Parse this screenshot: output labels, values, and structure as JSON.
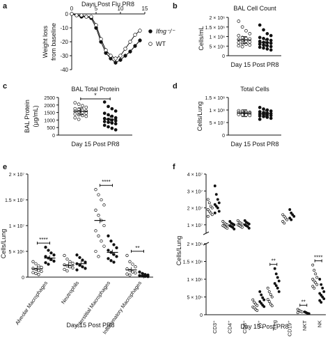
{
  "chart_data": [
    {
      "panel": "a",
      "type": "line",
      "xlabel": "Days Post Flu PR8",
      "ylabel": "Weight loss from baseline",
      "xticks": [
        "0",
        "5",
        "10",
        "15"
      ],
      "yticks": [
        "0",
        "-10",
        "-20",
        "-30",
        "-40"
      ],
      "xlim": [
        0,
        15
      ],
      "ylim": [
        -40,
        0
      ],
      "series": [
        {
          "name": "Ifng⁻/⁻",
          "marker": "filled",
          "x": [
            0,
            1,
            2,
            3,
            4,
            5,
            6,
            7,
            8,
            9,
            10,
            11,
            12,
            13,
            14
          ],
          "values": [
            0,
            -1,
            -2,
            -2,
            -3,
            -10,
            -20,
            -28,
            -32,
            -35,
            -33,
            -30,
            -27,
            -23,
            -19
          ]
        },
        {
          "name": "WT",
          "marker": "open",
          "x": [
            0,
            1,
            2,
            3,
            4,
            5,
            6,
            7,
            8,
            9,
            10,
            11,
            12,
            13,
            14
          ],
          "values": [
            0,
            -1,
            -1,
            -2,
            -2,
            -8,
            -18,
            -26,
            -30,
            -32,
            -30,
            -25,
            -20,
            -15,
            -12
          ]
        }
      ],
      "legend": [
        "Ifng⁻/⁻",
        "WT"
      ],
      "legend_position": "right"
    },
    {
      "panel": "b",
      "type": "scatter",
      "title": "BAL Cell Count",
      "ylabel": "Cells/mL",
      "xlabel": "Day 15 Post PR8",
      "yticks": [
        "0",
        "5 × 10⁵",
        "1 × 10⁶",
        "1.5 × 10⁶",
        "2 × 10⁶"
      ],
      "ylim": [
        0,
        2000000
      ],
      "series": [
        {
          "name": "WT",
          "marker": "open",
          "mean": 820000,
          "values": [
            1800000,
            1500000,
            1300000,
            1150000,
            1050000,
            950000,
            900000,
            880000,
            850000,
            800000,
            760000,
            720000,
            680000,
            640000,
            600000,
            560000,
            520000,
            470000
          ]
        },
        {
          "name": "Ifng⁻/⁻",
          "marker": "filled",
          "mean": 680000,
          "values": [
            1600000,
            1350000,
            1150000,
            1050000,
            950000,
            900000,
            850000,
            800000,
            750000,
            700000,
            680000,
            650000,
            600000,
            560000,
            520000,
            480000,
            440000,
            400000,
            350000,
            300000
          ]
        }
      ]
    },
    {
      "panel": "c",
      "type": "scatter",
      "title": "BAL Total Protein",
      "ylabel": "BAL Protein (µg/mL)",
      "xlabel": "Day 15 Post PR8",
      "yticks": [
        "0",
        "500",
        "1000",
        "1500",
        "2000",
        "2500"
      ],
      "ylim": [
        0,
        2500
      ],
      "significance": "*",
      "series": [
        {
          "name": "WT",
          "marker": "open",
          "mean": 1580,
          "values": [
            2150,
            2050,
            1950,
            1850,
            1750,
            1700,
            1650,
            1600,
            1580,
            1550,
            1500,
            1450,
            1400,
            1350,
            1300,
            1250,
            1150,
            1050
          ]
        },
        {
          "name": "Ifng⁻/⁻",
          "marker": "filled",
          "mean": 1050,
          "values": [
            2200,
            1900,
            1750,
            1600,
            1450,
            1350,
            1250,
            1150,
            1100,
            1050,
            1000,
            950,
            900,
            850,
            800,
            750,
            650,
            550,
            450,
            350
          ]
        }
      ]
    },
    {
      "panel": "d",
      "type": "scatter",
      "title": "Total Cells",
      "ylabel": "Cells/Lung",
      "xlabel": "Day 15 Post PR8",
      "yticks": [
        "0",
        "5 × 10⁷",
        "1 × 10⁸",
        "1.5 × 10⁸"
      ],
      "ylim": [
        0,
        150000000
      ],
      "series": [
        {
          "name": "WT",
          "marker": "open",
          "mean": 87000000,
          "values": [
            97000000,
            95000000,
            93000000,
            91000000,
            90000000,
            89000000,
            88000000,
            87000000,
            86000000,
            85000000,
            84000000,
            83000000,
            82000000,
            81000000,
            80000000,
            78000000
          ]
        },
        {
          "name": "Ifng⁻/⁻",
          "marker": "filled",
          "mean": 86000000,
          "values": [
            110000000,
            104000000,
            100000000,
            96000000,
            93000000,
            90000000,
            88000000,
            86000000,
            84000000,
            82000000,
            80000000,
            78000000,
            76000000,
            74000000,
            71000000,
            67000000,
            63000000
          ]
        }
      ]
    },
    {
      "panel": "e",
      "type": "scatter",
      "ylabel": "Cells/Lung",
      "xlabel": "Day 15 Post PR8",
      "yticks": [
        "0",
        "5 × 10⁶",
        "1 × 10⁷",
        "1.5 × 10⁷",
        "2 × 10⁷"
      ],
      "ylim": [
        0,
        20000000
      ],
      "categories": [
        "Alveolar Macrophages",
        "Neutrophils",
        "Interstitial Macrophages",
        "Inflammatory Macrophages"
      ],
      "significance": [
        "****",
        "",
        "****",
        "**"
      ],
      "series": [
        {
          "name": "WT",
          "marker": "open",
          "means": [
            1600000,
            2300000,
            11000000,
            1400000
          ],
          "values": [
            [
              3000000,
              2600000,
              2200000,
              1900000,
              1700000,
              1500000,
              1300000,
              1100000,
              900000,
              700000,
              500000
            ],
            [
              4200000,
              3500000,
              3000000,
              2700000,
              2400000,
              2200000,
              2000000,
              1800000,
              1500000,
              1200000
            ],
            [
              17000000,
              16000000,
              15000000,
              14000000,
              13000000,
              12000000,
              11000000,
              10000000,
              9000000,
              8000000,
              7000000,
              6000000,
              5000000,
              4000000
            ],
            [
              4200000,
              3000000,
              2500000,
              2000000,
              1600000,
              1300000,
              1000000,
              800000,
              600000,
              400000
            ]
          ]
        },
        {
          "name": "Ifng⁻/⁻",
          "marker": "filled",
          "means": [
            3700000,
            2600000,
            4800000,
            300000
          ],
          "values": [
            [
              5800000,
              5200000,
              4700000,
              4300000,
              4000000,
              3700000,
              3400000,
              3100000,
              2800000,
              2500000
            ],
            [
              4300000,
              3800000,
              3300000,
              2900000,
              2600000,
              2300000,
              2000000,
              1700000,
              1400000
            ],
            [
              8000000,
              7000000,
              6300000,
              5700000,
              5200000,
              4800000,
              4400000,
              4000000,
              3600000,
              3200000,
              2900000
            ],
            [
              1000000,
              700000,
              500000,
              400000,
              300000,
              200000,
              150000,
              100000
            ]
          ]
        }
      ]
    },
    {
      "panel": "f",
      "type": "scatter",
      "ylabel": "Cells/Lung",
      "xlabel": "Day 15 Post PR8",
      "yticks_top": [
        "1 × 10⁷",
        "2 × 10⁷",
        "3 × 10⁷",
        "4 × 10⁷"
      ],
      "ylim_top": [
        5000000,
        40000000
      ],
      "yticks_bottom": [
        "0",
        "5 × 10⁵",
        "1 × 10⁶",
        "1.5 × 10⁶",
        "2 × 10⁶"
      ],
      "ylim_bottom": [
        0,
        2000000
      ],
      "categories": [
        "CD3⁺",
        "CD4⁺",
        "CD8⁺",
        "γδ⁺",
        "Treg",
        "CD19⁺",
        "NKT",
        "NK"
      ],
      "significance": [
        "",
        "",
        "",
        "",
        "**",
        "",
        "**",
        "****"
      ],
      "series": [
        {
          "name": "WT",
          "marker": "open",
          "values": [
            [
              25000000,
              23000000,
              21000000,
              20000000,
              19000000,
              18000000,
              17000000,
              16000000,
              15000000
            ],
            [
              12000000,
              11000000,
              10500000,
              10000000,
              9500000,
              9000000,
              8500000,
              8000000
            ],
            [
              12500000,
              11500000,
              11000000,
              10500000,
              10000000,
              9500000,
              9000000,
              8500000
            ],
            [
              420000,
              350000,
              300000,
              260000,
              220000,
              190000,
              150000,
              120000
            ],
            [
              750000,
              650000,
              570000,
              500000,
              430000,
              370000,
              300000,
              250000
            ],
            [
              16000000,
              15000000,
              14000000,
              13000000,
              12000000,
              11000000
            ],
            [
              150000,
              120000,
              100000,
              80000,
              60000
            ],
            [
              1400000,
              1250000,
              1150000,
              1050000,
              1000000,
              950000,
              900000,
              850000,
              800000,
              750000
            ]
          ]
        },
        {
          "name": "Ifng⁻/⁻",
          "marker": "filled",
          "values": [
            [
              33000000,
              28000000,
              25000000,
              23000000,
              22000000,
              21000000,
              20000000,
              18000000,
              17000000
            ],
            [
              12000000,
              11000000,
              10500000,
              10000000,
              9500000,
              9000000,
              8500000,
              7500000
            ],
            [
              12500000,
              11500000,
              11000000,
              10500000,
              10000000,
              9500000,
              9000000,
              8000000
            ],
            [
              650000,
              560000,
              480000,
              420000,
              370000,
              320000,
              270000,
              230000
            ],
            [
              1300000,
              1150000,
              1050000,
              950000,
              880000,
              820000,
              750000,
              650000
            ],
            [
              19000000,
              17000000,
              16000000,
              15000000,
              14000000,
              13000000
            ],
            [
              80000,
              60000,
              40000,
              30000
            ],
            [
              1000000,
              850000,
              750000,
              650000,
              600000,
              550000,
              500000,
              450000,
              400000,
              350000
            ]
          ]
        }
      ]
    }
  ],
  "panel_letters": [
    "a",
    "b",
    "c",
    "d",
    "e",
    "f"
  ]
}
